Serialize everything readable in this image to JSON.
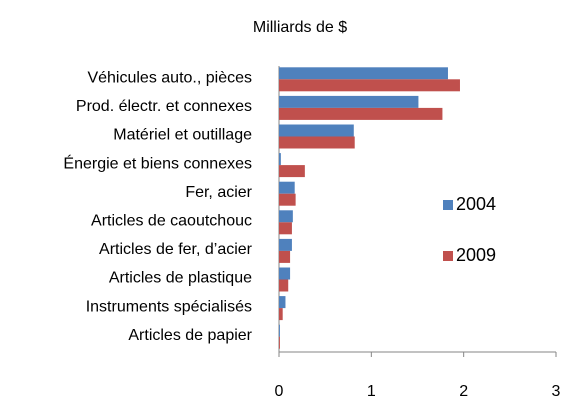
{
  "chart_data": {
    "type": "barh",
    "title": "Milliards de $",
    "categories": [
      "Véhicules auto., pièces",
      "Prod. électr. et connexes",
      "Matériel et outillage",
      "Énergie et biens connexes",
      "Fer, acier",
      "Articles de caoutchouc",
      "Articles de fer, d’acier",
      "Articles de plastique",
      "Instruments spécialisés",
      "Articles de papier"
    ],
    "series": [
      {
        "name": "2004",
        "color": "#4f81bd",
        "values": [
          1.83,
          1.51,
          0.81,
          0.02,
          0.17,
          0.15,
          0.14,
          0.12,
          0.07,
          0.01
        ]
      },
      {
        "name": "2009",
        "color": "#c0504d",
        "values": [
          1.96,
          1.77,
          0.82,
          0.28,
          0.18,
          0.14,
          0.12,
          0.1,
          0.04,
          0.01
        ]
      }
    ],
    "xlim": [
      0,
      3
    ],
    "xticks": [
      0,
      1,
      2,
      3
    ],
    "legend": "right"
  }
}
